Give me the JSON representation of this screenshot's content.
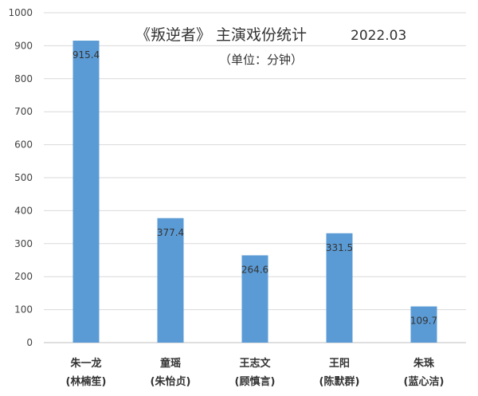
{
  "chart_data": {
    "type": "bar",
    "title": "《叛逆者》 主演戏份统计",
    "title_date": "2022.03",
    "subtitle": "（单位：分钟）",
    "categories": [
      {
        "name": "朱一龙",
        "actor": "(林楠笙)"
      },
      {
        "name": "童瑶",
        "actor": "(朱怡贞)"
      },
      {
        "name": "王志文",
        "actor": "(顾慎言)"
      },
      {
        "name": "王阳",
        "actor": "(陈默群)"
      },
      {
        "name": "朱珠",
        "actor": "(蓝心洁)"
      }
    ],
    "values": [
      915.4,
      377.4,
      264.6,
      331.5,
      109.7
    ],
    "value_labels": [
      "915.4",
      "377.4",
      "264.6",
      "331.5",
      "109.7"
    ],
    "ylim": [
      0,
      1000
    ],
    "yticks": [
      0,
      100,
      200,
      300,
      400,
      500,
      600,
      700,
      800,
      900,
      1000
    ],
    "ytick_labels": [
      "0",
      "100",
      "200",
      "300",
      "400",
      "500",
      "600",
      "700",
      "800",
      "900",
      "1000"
    ],
    "grid": true,
    "legend": "none",
    "colors": {
      "bar": "#5b9bd5",
      "grid": "#d9d9d9",
      "axis": "#bfbfbf"
    }
  }
}
